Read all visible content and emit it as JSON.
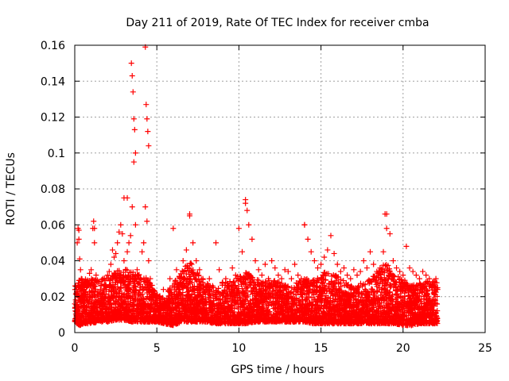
{
  "chart_data": {
    "type": "scatter",
    "title": "Day 211 of 2019, Rate Of TEC Index for receiver cmba",
    "xlabel": "GPS time / hours",
    "ylabel": "ROTI / TECUs",
    "xlim": [
      0,
      25
    ],
    "ylim": [
      0,
      0.16
    ],
    "x_ticks": [
      0,
      5,
      10,
      15,
      20,
      25
    ],
    "x_tick_labels": [
      "0",
      "5",
      "10",
      "15",
      "20",
      "25"
    ],
    "y_ticks": [
      0,
      0.02,
      0.04,
      0.06,
      0.08,
      0.1,
      0.12,
      0.14,
      0.16
    ],
    "y_tick_labels": [
      "0",
      "0.02",
      "0.04",
      "0.06",
      "0.08",
      "0.1",
      "0.12",
      "0.14",
      "0.16"
    ],
    "grid": true,
    "marker": "+",
    "color": "#ff0000",
    "series": [
      {
        "name": "ROTI",
        "x": [
          0.0,
          0.1,
          0.15,
          0.2,
          0.25,
          0.3,
          0.3,
          0.35,
          0.4,
          0.5,
          0.6,
          0.7,
          0.8,
          0.9,
          1.0,
          1.1,
          1.15,
          1.2,
          1.3,
          1.4,
          1.5,
          1.6,
          1.7,
          1.8,
          1.9,
          2.0,
          2.1,
          2.2,
          2.3,
          2.4,
          2.5,
          2.6,
          2.7,
          2.8,
          2.9,
          3.0,
          3.1,
          3.2,
          3.3,
          3.4,
          3.5,
          3.6,
          3.7,
          3.8,
          3.9,
          4.0,
          4.1,
          4.2,
          4.3,
          4.4,
          4.5,
          4.6,
          4.7,
          4.8,
          4.9,
          5.0,
          5.2,
          5.4,
          5.6,
          5.8,
          6.0,
          6.2,
          6.4,
          6.6,
          6.8,
          7.0,
          7.2,
          7.4,
          7.6,
          7.8,
          8.0,
          8.2,
          8.4,
          8.6,
          8.8,
          9.0,
          9.2,
          9.4,
          9.6,
          9.8,
          10.0,
          10.2,
          10.4,
          10.6,
          10.8,
          11.0,
          11.2,
          11.4,
          11.6,
          11.8,
          12.0,
          12.2,
          12.4,
          12.6,
          12.8,
          13.0,
          13.2,
          13.4,
          13.6,
          13.8,
          14.0,
          14.2,
          14.4,
          14.6,
          14.8,
          15.0,
          15.2,
          15.4,
          15.6,
          15.8,
          16.0,
          16.2,
          16.4,
          16.6,
          16.8,
          17.0,
          17.2,
          17.4,
          17.6,
          17.8,
          18.0,
          18.2,
          18.4,
          18.6,
          18.8,
          19.0,
          19.2,
          19.4,
          19.6,
          19.8,
          20.0,
          20.2,
          20.4,
          20.6,
          20.8,
          21.0,
          21.2,
          21.4,
          21.6,
          21.8,
          22.0,
          22.1,
          3.45,
          3.5,
          3.55,
          3.6,
          3.65,
          3.7,
          4.3,
          4.35,
          4.4,
          4.45,
          4.5,
          3.0,
          3.2,
          7.0,
          10.4,
          10.5,
          18.9,
          19.0,
          14.0,
          1.2,
          0.25
        ],
        "y": [
          0.016,
          0.022,
          0.05,
          0.058,
          0.052,
          0.041,
          0.012,
          0.035,
          0.03,
          0.026,
          0.018,
          0.025,
          0.021,
          0.033,
          0.035,
          0.058,
          0.062,
          0.05,
          0.032,
          0.028,
          0.022,
          0.026,
          0.03,
          0.03,
          0.026,
          0.032,
          0.034,
          0.038,
          0.046,
          0.042,
          0.044,
          0.05,
          0.056,
          0.06,
          0.055,
          0.04,
          0.035,
          0.045,
          0.05,
          0.054,
          0.07,
          0.095,
          0.06,
          0.035,
          0.032,
          0.03,
          0.045,
          0.05,
          0.07,
          0.062,
          0.04,
          0.03,
          0.024,
          0.02,
          0.018,
          0.015,
          0.013,
          0.024,
          0.016,
          0.03,
          0.058,
          0.035,
          0.03,
          0.04,
          0.046,
          0.065,
          0.05,
          0.04,
          0.035,
          0.028,
          0.025,
          0.03,
          0.026,
          0.05,
          0.035,
          0.028,
          0.03,
          0.024,
          0.036,
          0.032,
          0.058,
          0.045,
          0.072,
          0.06,
          0.052,
          0.04,
          0.035,
          0.032,
          0.038,
          0.03,
          0.04,
          0.036,
          0.032,
          0.03,
          0.035,
          0.034,
          0.03,
          0.038,
          0.032,
          0.03,
          0.06,
          0.052,
          0.045,
          0.04,
          0.036,
          0.038,
          0.042,
          0.046,
          0.054,
          0.044,
          0.038,
          0.034,
          0.036,
          0.032,
          0.03,
          0.035,
          0.032,
          0.034,
          0.04,
          0.036,
          0.045,
          0.038,
          0.034,
          0.036,
          0.045,
          0.066,
          0.055,
          0.04,
          0.036,
          0.034,
          0.032,
          0.048,
          0.036,
          0.034,
          0.032,
          0.03,
          0.034,
          0.032,
          0.03,
          0.028,
          0.03,
          0.025,
          0.15,
          0.143,
          0.134,
          0.119,
          0.113,
          0.1,
          0.159,
          0.127,
          0.119,
          0.112,
          0.104,
          0.075,
          0.075,
          0.066,
          0.074,
          0.068,
          0.066,
          0.058,
          0.06,
          0.058,
          0.057
        ],
        "band": {
          "description": "dense cloud of points",
          "x": [
            0,
            0.3,
            0.6,
            1,
            1.5,
            2,
            2.5,
            3,
            3.5,
            4,
            4.5,
            5,
            5.5,
            6,
            6.5,
            7,
            7.5,
            8,
            8.5,
            9,
            9.5,
            10,
            10.5,
            11,
            11.5,
            12,
            12.5,
            13,
            13.5,
            14,
            14.5,
            15,
            15.5,
            16,
            16.5,
            17,
            17.5,
            18,
            18.5,
            19,
            19.5,
            20,
            20.5,
            21,
            21.5,
            22,
            22.1
          ],
          "low": [
            0.006,
            0.004,
            0.005,
            0.005,
            0.006,
            0.006,
            0.007,
            0.007,
            0.006,
            0.006,
            0.006,
            0.006,
            0.005,
            0.004,
            0.006,
            0.006,
            0.006,
            0.006,
            0.005,
            0.005,
            0.005,
            0.005,
            0.005,
            0.006,
            0.006,
            0.006,
            0.006,
            0.006,
            0.006,
            0.006,
            0.005,
            0.005,
            0.005,
            0.005,
            0.005,
            0.005,
            0.005,
            0.005,
            0.005,
            0.005,
            0.005,
            0.004,
            0.004,
            0.005,
            0.005,
            0.005,
            0.005
          ],
          "high": [
            0.026,
            0.03,
            0.03,
            0.03,
            0.03,
            0.031,
            0.034,
            0.036,
            0.034,
            0.032,
            0.03,
            0.022,
            0.02,
            0.028,
            0.034,
            0.04,
            0.034,
            0.028,
            0.025,
            0.028,
            0.03,
            0.032,
            0.034,
            0.03,
            0.028,
            0.03,
            0.028,
            0.026,
            0.028,
            0.03,
            0.03,
            0.034,
            0.033,
            0.032,
            0.028,
            0.026,
            0.028,
            0.03,
            0.034,
            0.04,
            0.032,
            0.03,
            0.026,
            0.028,
            0.029,
            0.029,
            0.028
          ]
        }
      }
    ]
  }
}
